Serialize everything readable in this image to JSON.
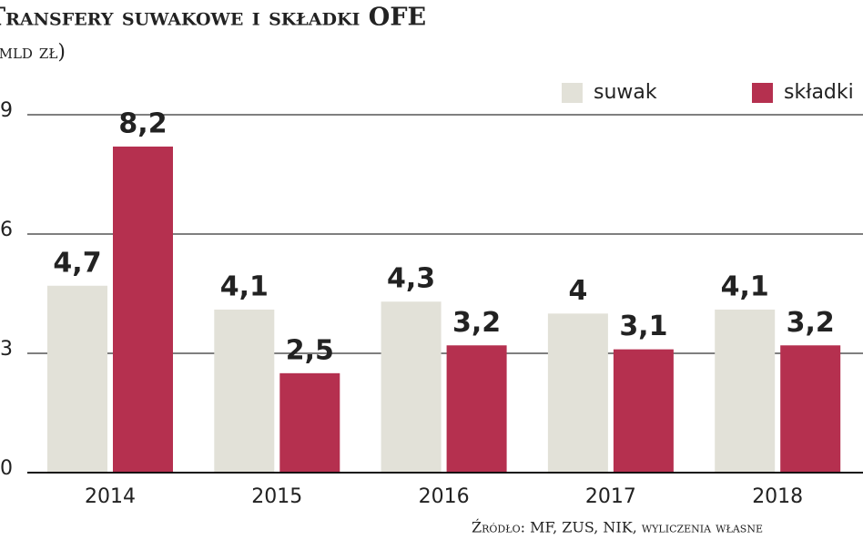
{
  "chart_data": {
    "type": "bar",
    "title": "Transfery suwakowe i składki OFE",
    "subtitle": "(mld zł)",
    "source": "Źródło: MF, ZUS, NIK, wyliczenia własne",
    "categories": [
      "2014",
      "2015",
      "2016",
      "2017",
      "2018"
    ],
    "series": [
      {
        "name": "suwak",
        "color": "#e2e1d8",
        "values": [
          4.7,
          4.1,
          4.3,
          4,
          4.1
        ],
        "value_labels": [
          "4,7",
          "4,1",
          "4,3",
          "4",
          "4,1"
        ]
      },
      {
        "name": "składki",
        "color": "#b5304f",
        "values": [
          8.2,
          2.5,
          3.2,
          3.1,
          3.2
        ],
        "value_labels": [
          "8,2",
          "2,5",
          "3,2",
          "3,1",
          "3,2"
        ]
      }
    ],
    "ylim": [
      0,
      9
    ],
    "yticks": [
      0,
      3,
      6,
      9
    ],
    "grid": true,
    "legend": "top-right"
  }
}
